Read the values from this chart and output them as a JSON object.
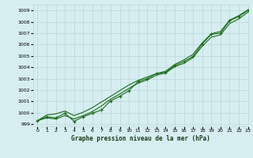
{
  "title": "Graphe pression niveau de la mer (hPa)",
  "bg_color": "#d6eef0",
  "grid_color": "#b8d8d8",
  "line_color": "#1a6b1a",
  "xlim": [
    -0.5,
    23
  ],
  "ylim": [
    998.8,
    1009.5
  ],
  "yticks": [
    999,
    1000,
    1001,
    1002,
    1003,
    1004,
    1005,
    1006,
    1007,
    1008,
    1009
  ],
  "xticks": [
    0,
    1,
    2,
    3,
    4,
    5,
    6,
    7,
    8,
    9,
    10,
    11,
    12,
    13,
    14,
    15,
    16,
    17,
    18,
    19,
    20,
    21,
    22,
    23
  ],
  "s_upper": [
    999.3,
    999.8,
    999.9,
    1000.15,
    999.75,
    1000.05,
    1000.45,
    1000.95,
    1001.45,
    1001.95,
    1002.45,
    1002.85,
    1003.15,
    1003.45,
    1003.65,
    1004.25,
    1004.65,
    1005.15,
    1006.15,
    1006.95,
    1007.15,
    1008.15,
    1008.55,
    1009.05
  ],
  "s_lower": [
    999.3,
    999.55,
    999.45,
    999.75,
    999.45,
    999.75,
    1000.1,
    1000.6,
    1001.2,
    1001.65,
    1002.15,
    1002.6,
    1002.9,
    1003.3,
    1003.5,
    1004.05,
    1004.35,
    1004.85,
    1005.85,
    1006.65,
    1006.85,
    1007.85,
    1008.25,
    1008.85
  ],
  "s_marker": [
    999.3,
    999.65,
    999.55,
    999.95,
    999.25,
    999.65,
    999.95,
    1000.25,
    1001.05,
    1001.45,
    1001.95,
    1002.75,
    1003.0,
    1003.45,
    1003.55,
    1004.15,
    1004.5,
    1004.95,
    1006.05,
    1006.9,
    1007.0,
    1008.1,
    1008.45,
    1009.0
  ]
}
